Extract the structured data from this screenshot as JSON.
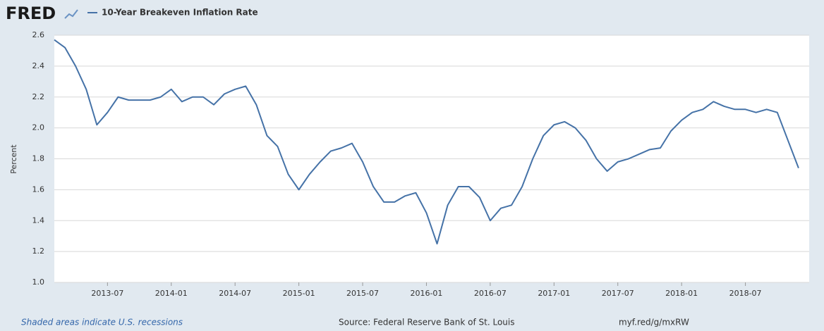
{
  "chart_data": {
    "type": "line",
    "logo": "FRED",
    "ylabel": "Percent",
    "note": "Shaded areas indicate U.S. recessions",
    "source": "Source: Federal Reserve Bank of St. Louis",
    "link": "myf.red/g/mxRW",
    "x": [
      "2013-02",
      "2013-03",
      "2013-04",
      "2013-05",
      "2013-06",
      "2013-07",
      "2013-08",
      "2013-09",
      "2013-10",
      "2013-11",
      "2013-12",
      "2014-01",
      "2014-02",
      "2014-03",
      "2014-04",
      "2014-05",
      "2014-06",
      "2014-07",
      "2014-08",
      "2014-09",
      "2014-10",
      "2014-11",
      "2014-12",
      "2015-01",
      "2015-02",
      "2015-03",
      "2015-04",
      "2015-05",
      "2015-06",
      "2015-07",
      "2015-08",
      "2015-09",
      "2015-10",
      "2015-11",
      "2015-12",
      "2016-01",
      "2016-02",
      "2016-03",
      "2016-04",
      "2016-05",
      "2016-06",
      "2016-07",
      "2016-08",
      "2016-09",
      "2016-10",
      "2016-11",
      "2016-12",
      "2017-01",
      "2017-02",
      "2017-03",
      "2017-04",
      "2017-05",
      "2017-06",
      "2017-07",
      "2017-08",
      "2017-09",
      "2017-10",
      "2017-11",
      "2017-12",
      "2018-01",
      "2018-02",
      "2018-03",
      "2018-04",
      "2018-05",
      "2018-06",
      "2018-07",
      "2018-08",
      "2018-09",
      "2018-10",
      "2018-11",
      "2018-12"
    ],
    "series": [
      {
        "name": "10-Year Breakeven Inflation Rate",
        "color": "#4572a7",
        "values": [
          2.57,
          2.52,
          2.4,
          2.25,
          2.02,
          2.1,
          2.2,
          2.18,
          2.18,
          2.18,
          2.2,
          2.25,
          2.17,
          2.2,
          2.2,
          2.15,
          2.22,
          2.25,
          2.27,
          2.15,
          1.95,
          1.88,
          1.7,
          1.6,
          1.7,
          1.78,
          1.85,
          1.87,
          1.9,
          1.78,
          1.62,
          1.52,
          1.52,
          1.56,
          1.58,
          1.45,
          1.25,
          1.5,
          1.62,
          1.62,
          1.55,
          1.4,
          1.48,
          1.5,
          1.62,
          1.8,
          1.95,
          2.02,
          2.04,
          2.0,
          1.92,
          1.8,
          1.72,
          1.78,
          1.8,
          1.83,
          1.86,
          1.87,
          1.98,
          2.05,
          2.1,
          2.12,
          2.17,
          2.14,
          2.12,
          2.12,
          2.1,
          2.12,
          2.1,
          1.92,
          1.74
        ]
      }
    ],
    "xlim": [
      "2013-02",
      "2019-01"
    ],
    "xticks": [
      "2013-07",
      "2014-01",
      "2014-07",
      "2015-01",
      "2015-07",
      "2016-01",
      "2016-07",
      "2017-01",
      "2017-07",
      "2018-01",
      "2018-07"
    ],
    "ylim": [
      1,
      2.6
    ],
    "yticks": [
      {
        "value": 1,
        "label": "1.0"
      },
      1.2,
      1.4,
      1.6,
      1.8,
      {
        "value": 2,
        "label": "2.0"
      },
      2.2,
      2.4,
      2.6
    ],
    "grid": true
  }
}
